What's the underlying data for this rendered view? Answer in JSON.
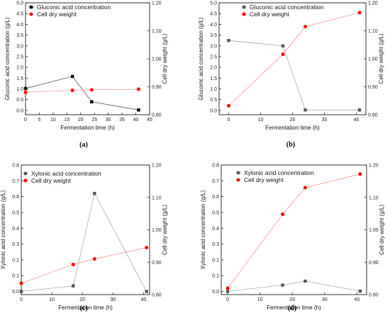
{
  "chart_data": [
    {
      "type": "line",
      "panel_label": "(a)",
      "xlabel": "Fermentation time (h)",
      "ylabel_left": "Gluconic acid concentration (g/L)",
      "ylabel_right": "Cell dry weight (g/L)",
      "xlim": [
        0,
        45
      ],
      "x_ticks": [
        0,
        5,
        10,
        15,
        20,
        25,
        30,
        35,
        40,
        45
      ],
      "ylim_left": [
        -0.2,
        5.0
      ],
      "y_ticks_left": [
        0.0,
        0.5,
        1.0,
        1.5,
        2.0,
        2.5,
        3.0,
        3.5,
        4.0,
        4.5,
        5.0
      ],
      "ylim_right": [
        0.8,
        1.2
      ],
      "y_ticks_right": [
        0.8,
        0.9,
        1.0,
        1.1,
        1.2
      ],
      "series": [
        {
          "name": "Gluconic acid concentration",
          "axis": "left",
          "color": "#000000",
          "marker": "square",
          "line_color": "#555555",
          "x": [
            0,
            17,
            24,
            41
          ],
          "y": [
            1.02,
            1.58,
            0.4,
            0.02
          ]
        },
        {
          "name": "Cell dry weight",
          "axis": "right",
          "color": "#ff0000",
          "marker": "circle",
          "line_color": "#ff9999",
          "x": [
            0,
            17,
            24,
            41
          ],
          "y": [
            0.88,
            0.887,
            0.889,
            0.891
          ]
        }
      ]
    },
    {
      "type": "line",
      "panel_label": "(b)",
      "xlabel": "Fermentation time (h)",
      "ylabel_left": "Gluconic acid concentration (g/L)",
      "ylabel_right": "Cell dry weight (g/L)",
      "xlim": [
        -3,
        43
      ],
      "x_ticks": [
        0,
        10,
        20,
        30,
        40
      ],
      "ylim_left": [
        -0.2,
        5.0
      ],
      "y_ticks_left": [
        0.0,
        0.5,
        1.0,
        1.5,
        2.0,
        2.5,
        3.0,
        3.5,
        4.0,
        4.5,
        5.0
      ],
      "ylim_right": [
        0.8,
        1.2
      ],
      "y_ticks_right": [
        0.8,
        0.9,
        1.0,
        1.1,
        1.2
      ],
      "series": [
        {
          "name": "Gluconic acid concentration",
          "axis": "left",
          "color": "#555555",
          "marker": "square",
          "line_color": "#aaaaaa",
          "x": [
            0,
            17,
            24,
            41
          ],
          "y": [
            3.25,
            3.0,
            0.02,
            0.02
          ]
        },
        {
          "name": "Cell dry weight",
          "axis": "right",
          "color": "#ff0000",
          "marker": "circle",
          "line_color": "#ff9999",
          "x": [
            0,
            17,
            24,
            41
          ],
          "y": [
            0.832,
            1.016,
            1.115,
            1.165
          ]
        }
      ]
    },
    {
      "type": "line",
      "panel_label": "(c)",
      "xlabel": "Fermentation time (h)",
      "ylabel_left": "Xylonic acid concentration (g/L)",
      "ylabel_right": "Cell dry weight (g/L)",
      "xlim": [
        0,
        42
      ],
      "x_ticks": [
        0,
        10,
        20,
        30,
        40
      ],
      "ylim_left": [
        -0.02,
        0.8
      ],
      "y_ticks_left": [
        0.0,
        0.1,
        0.2,
        0.3,
        0.4,
        0.5,
        0.6,
        0.7,
        0.8
      ],
      "ylim_right": [
        0.8,
        1.2
      ],
      "y_ticks_right": [
        0.8,
        0.9,
        1.0,
        1.1,
        1.2
      ],
      "series": [
        {
          "name": "Xylonic acid concentration",
          "axis": "left",
          "color": "#555555",
          "marker": "square",
          "line_color": "#aaaaaa",
          "x": [
            0,
            17,
            24,
            41
          ],
          "y": [
            0.0,
            0.035,
            0.62,
            0.0
          ]
        },
        {
          "name": "Cell dry weight",
          "axis": "right",
          "color": "#ff0000",
          "marker": "circle",
          "line_color": "#ff9999",
          "x": [
            0,
            17,
            24,
            41
          ],
          "y": [
            0.835,
            0.893,
            0.91,
            0.945
          ]
        }
      ]
    },
    {
      "type": "line",
      "panel_label": "(d)",
      "xlabel": "Fermentation time (h)",
      "ylabel_left": "Xylonic acid concentration (g/L)",
      "ylabel_right": "Cell dry weight (g/L)",
      "xlim": [
        -2,
        43
      ],
      "x_ticks": [
        0,
        10,
        20,
        30,
        40
      ],
      "ylim_left": [
        -0.02,
        0.8
      ],
      "y_ticks_left": [
        0.0,
        0.1,
        0.2,
        0.3,
        0.4,
        0.5,
        0.6,
        0.7,
        0.8
      ],
      "ylim_right": [
        0.8,
        1.2
      ],
      "y_ticks_right": [
        0.8,
        0.9,
        1.0,
        1.1,
        1.2
      ],
      "series": [
        {
          "name": "Xylonic acid concentration",
          "axis": "left",
          "color": "#555555",
          "marker": "square",
          "line_color": "#aaaaaa",
          "x": [
            0,
            17,
            24,
            41
          ],
          "y": [
            0.0,
            0.04,
            0.065,
            0.002
          ]
        },
        {
          "name": "Cell dry weight",
          "axis": "right",
          "color": "#ff0000",
          "marker": "circle",
          "line_color": "#ff9999",
          "x": [
            0,
            17,
            24,
            41
          ],
          "y": [
            0.82,
            1.048,
            1.13,
            1.172
          ]
        }
      ]
    }
  ]
}
